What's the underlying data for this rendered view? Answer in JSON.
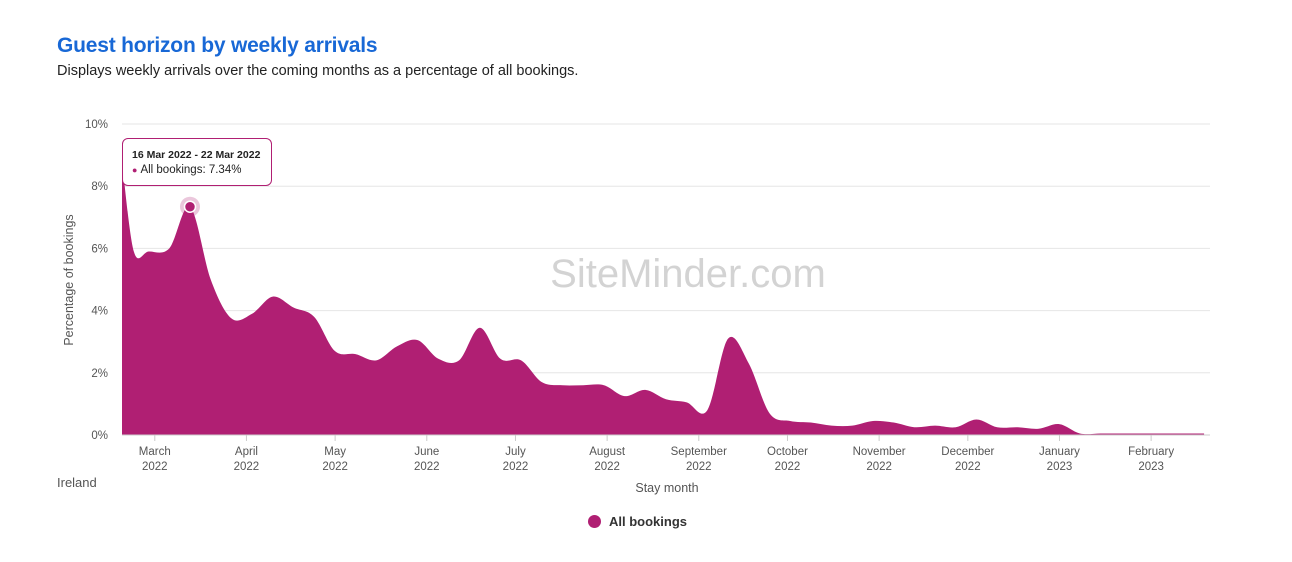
{
  "header": {
    "title": "Guest horizon by weekly arrivals",
    "subtitle": "Displays weekly arrivals over the coming months as a percentage of all bookings."
  },
  "watermark": "SiteMinder.com",
  "country_label": "Ireland",
  "tooltip": {
    "range": "16 Mar 2022 - 22 Mar 2022",
    "series": "All bookings",
    "value_text": "7.34%",
    "point": {
      "x": "2022-03-19",
      "y": 7.34
    }
  },
  "legend": {
    "label": "All bookings",
    "color": "#b01f73"
  },
  "chart_data": {
    "type": "area",
    "title": "Guest horizon by weekly arrivals",
    "xlabel": "Stay month",
    "ylabel": "Percentage of bookings",
    "ylim": [
      0,
      10
    ],
    "y_ticks": [
      "0%",
      "2%",
      "4%",
      "6%",
      "8%",
      "10%"
    ],
    "x_ticks": [
      {
        "date": "2022-03-01",
        "line1": "March",
        "line2": "2022"
      },
      {
        "date": "2022-04-01",
        "line1": "April",
        "line2": "2022"
      },
      {
        "date": "2022-05-01",
        "line1": "May",
        "line2": "2022"
      },
      {
        "date": "2022-06-01",
        "line1": "June",
        "line2": "2022"
      },
      {
        "date": "2022-07-01",
        "line1": "July",
        "line2": "2022"
      },
      {
        "date": "2022-08-01",
        "line1": "August",
        "line2": "2022"
      },
      {
        "date": "2022-09-01",
        "line1": "September",
        "line2": "2022"
      },
      {
        "date": "2022-10-01",
        "line1": "October",
        "line2": "2022"
      },
      {
        "date": "2022-11-01",
        "line1": "November",
        "line2": "2022"
      },
      {
        "date": "2022-12-01",
        "line1": "December",
        "line2": "2022"
      },
      {
        "date": "2023-01-01",
        "line1": "January",
        "line2": "2023"
      },
      {
        "date": "2023-02-01",
        "line1": "February",
        "line2": "2023"
      }
    ],
    "grid": true,
    "legend_position": "bottom-center",
    "color": "#b01f73",
    "series": [
      {
        "name": "All bookings",
        "x": [
          "2022-02-24",
          "2022-02-28",
          "2022-03-05",
          "2022-03-12",
          "2022-03-19",
          "2022-03-26",
          "2022-04-02",
          "2022-04-09",
          "2022-04-16",
          "2022-04-23",
          "2022-04-30",
          "2022-05-07",
          "2022-05-14",
          "2022-05-21",
          "2022-05-28",
          "2022-06-04",
          "2022-06-11",
          "2022-06-18",
          "2022-06-25",
          "2022-07-02",
          "2022-07-09",
          "2022-07-16",
          "2022-07-23",
          "2022-07-30",
          "2022-08-06",
          "2022-08-13",
          "2022-08-20",
          "2022-08-27",
          "2022-09-03",
          "2022-09-10",
          "2022-09-17",
          "2022-09-24",
          "2022-10-01",
          "2022-10-08",
          "2022-10-15",
          "2022-10-22",
          "2022-10-29",
          "2022-11-05",
          "2022-11-12",
          "2022-11-19",
          "2022-11-26",
          "2022-12-03",
          "2022-12-10",
          "2022-12-17",
          "2022-12-24",
          "2022-12-31",
          "2023-01-07",
          "2023-01-14",
          "2023-01-21",
          "2023-01-28",
          "2023-02-04",
          "2023-02-11",
          "2023-02-18",
          "2023-02-25"
        ],
        "values": [
          8.8,
          5.9,
          5.9,
          6.0,
          7.34,
          5.0,
          3.75,
          3.9,
          4.45,
          4.1,
          3.8,
          2.7,
          2.6,
          2.4,
          2.85,
          3.05,
          2.45,
          2.4,
          3.45,
          2.45,
          2.4,
          1.7,
          1.6,
          1.6,
          1.6,
          1.25,
          1.45,
          1.15,
          1.05,
          0.8,
          3.1,
          2.3,
          0.7,
          0.45,
          0.4,
          0.3,
          0.3,
          0.45,
          0.4,
          0.25,
          0.3,
          0.25,
          0.5,
          0.25,
          0.25,
          0.2,
          0.35,
          0.05,
          0.05,
          0.05,
          0.05,
          0.05,
          0.05,
          0.05
        ]
      }
    ]
  }
}
